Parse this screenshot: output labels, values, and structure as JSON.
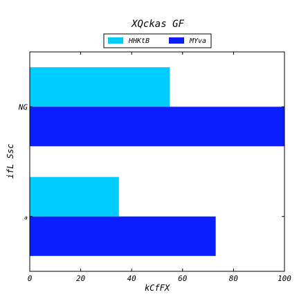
{
  "chart_data": {
    "type": "bar",
    "orientation": "horizontal",
    "title": "XQckas GF",
    "xlabel": "kCfFX",
    "ylabel": "ifL Ssc",
    "categories": [
      "a",
      "NG"
    ],
    "series": [
      {
        "name": "HHKtB",
        "color": "#00ccff",
        "values": [
          35,
          55
        ]
      },
      {
        "name": "MYva",
        "color": "#0a1eff",
        "values": [
          73,
          100
        ]
      }
    ],
    "xlim": [
      0,
      100
    ],
    "xticks": [
      "0",
      "20",
      "40",
      "60",
      "80",
      "100"
    ],
    "grid": false,
    "legend_position": "top-center"
  }
}
